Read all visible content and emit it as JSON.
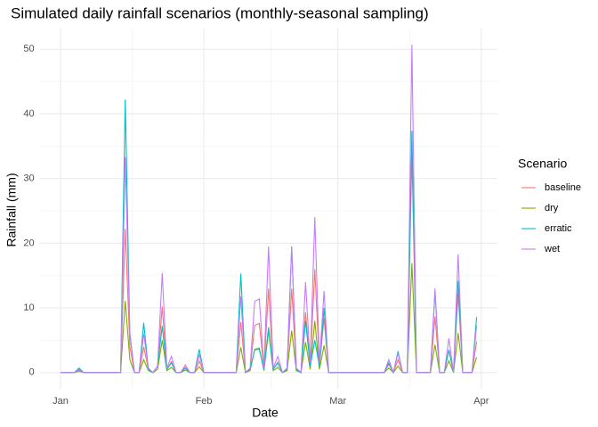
{
  "chart_data": {
    "type": "line",
    "title": "Simulated daily rainfall scenarios (monthly-seasonal sampling)",
    "x_label": "Date",
    "y_label": "Rainfall (mm)",
    "legend_title": "Scenario",
    "legend_position": "right",
    "grid": true,
    "x": [
      0,
      1,
      2,
      3,
      4,
      5,
      6,
      7,
      8,
      9,
      10,
      11,
      12,
      13,
      14,
      15,
      16,
      17,
      18,
      19,
      20,
      21,
      22,
      23,
      24,
      25,
      26,
      27,
      28,
      29,
      30,
      31,
      32,
      33,
      34,
      35,
      36,
      37,
      38,
      39,
      40,
      41,
      42,
      43,
      44,
      45,
      46,
      47,
      48,
      49,
      50,
      51,
      52,
      53,
      54,
      55,
      56,
      57,
      58,
      59,
      60,
      61,
      62,
      63,
      64,
      65,
      66,
      67,
      68,
      69,
      70,
      71,
      72,
      73,
      74,
      75,
      76,
      77,
      78,
      79,
      80,
      81,
      82,
      83,
      84,
      85,
      86,
      87,
      88,
      89,
      90
    ],
    "xlim": [
      -4.5,
      94.5
    ],
    "xticks": [
      {
        "value": 0,
        "label": "Jan"
      },
      {
        "value": 31,
        "label": "Feb"
      },
      {
        "value": 60,
        "label": "Mar"
      },
      {
        "value": 91,
        "label": "Apr"
      }
    ],
    "ylim": [
      -2.5,
      53.2
    ],
    "yticks": [
      0,
      10,
      20,
      30,
      40,
      50
    ],
    "series": [
      {
        "name": "baseline",
        "color": "#F8766D",
        "values": [
          0,
          0,
          0,
          0,
          0.5,
          0,
          0,
          0,
          0,
          0,
          0,
          0,
          0,
          0,
          22.2,
          4,
          0,
          0,
          4,
          0.5,
          0,
          1,
          10.2,
          0.5,
          1.7,
          0,
          0,
          0.8,
          0,
          0,
          1.8,
          0,
          0,
          0,
          0,
          0,
          0,
          0,
          0,
          7.8,
          0,
          0.5,
          7.3,
          7.6,
          0.5,
          13,
          0.5,
          1.6,
          0,
          0.5,
          13,
          0.5,
          0,
          9.3,
          1,
          16,
          1,
          8.4,
          0,
          0,
          0,
          0,
          0,
          0,
          0,
          0,
          0,
          0,
          0,
          0,
          0,
          1.3,
          0,
          2,
          0,
          0,
          33.8,
          0,
          0,
          0,
          0,
          8.7,
          0,
          0,
          3.5,
          0,
          12.2,
          0,
          0,
          0,
          4.8
        ]
      },
      {
        "name": "dry",
        "color": "#7CAE00",
        "values": [
          0,
          0,
          0,
          0,
          0.2,
          0,
          0,
          0,
          0,
          0,
          0,
          0,
          0,
          0,
          11.1,
          2,
          0,
          0,
          2,
          0.3,
          0,
          0.5,
          5,
          0.3,
          0.8,
          0,
          0,
          0.4,
          0,
          0,
          0.9,
          0,
          0,
          0,
          0,
          0,
          0,
          0,
          0,
          3.9,
          0,
          0.3,
          3.6,
          3.8,
          0.3,
          6.5,
          0.3,
          0.8,
          0,
          0.3,
          6.5,
          0.3,
          0,
          4.7,
          0.5,
          8,
          0.5,
          4.2,
          0,
          0,
          0,
          0,
          0,
          0,
          0,
          0,
          0,
          0,
          0,
          0,
          0,
          0.7,
          0,
          1,
          0,
          0,
          16.9,
          0,
          0,
          0,
          0,
          4.3,
          0,
          0,
          1.8,
          0,
          6.1,
          0,
          0,
          0,
          2.4
        ]
      },
      {
        "name": "erratic",
        "color": "#00BFC4",
        "values": [
          0,
          0,
          0,
          0,
          0.7,
          0,
          0,
          0,
          0,
          0,
          0,
          0,
          0,
          0,
          42.2,
          6,
          0,
          0,
          7.7,
          0.5,
          0,
          1,
          7.2,
          0.5,
          1.5,
          0,
          0,
          0.7,
          0,
          0,
          3.6,
          0,
          0,
          0,
          0,
          0,
          0,
          0,
          0,
          15.3,
          0,
          0.5,
          3.5,
          3.6,
          0.5,
          7,
          0.5,
          1.5,
          0,
          0.5,
          19.5,
          0.5,
          0,
          8,
          1,
          5,
          1,
          10,
          0,
          0,
          0,
          0,
          0,
          0,
          0,
          0,
          0,
          0,
          0,
          0,
          0,
          1.5,
          0,
          3.3,
          0,
          0,
          37.4,
          0,
          0,
          0,
          0,
          12.5,
          0,
          0,
          3.5,
          0,
          14.2,
          0,
          0,
          0,
          8.6
        ]
      },
      {
        "name": "wet",
        "color": "#C77CFF",
        "values": [
          0,
          0,
          0,
          0,
          0.4,
          0,
          0,
          0,
          0,
          0,
          0,
          0,
          0,
          0,
          33.3,
          6,
          0,
          0,
          6,
          0.7,
          0,
          1,
          15.4,
          0.7,
          2.5,
          0,
          0,
          1.2,
          0,
          0,
          2.8,
          0,
          0,
          0,
          0,
          0,
          0,
          0,
          0,
          11.8,
          0,
          0.7,
          11,
          11.4,
          0.7,
          19.5,
          0.7,
          2.5,
          0,
          0.7,
          19.5,
          0.7,
          0,
          14,
          1.5,
          24,
          1.5,
          12.6,
          0,
          0,
          0,
          0,
          0,
          0,
          0,
          0,
          0,
          0,
          0,
          0,
          0,
          2,
          0,
          3,
          0,
          0,
          50.7,
          0,
          0,
          0,
          0,
          13,
          0,
          0,
          5.3,
          0,
          18.3,
          0,
          0,
          0,
          7.3
        ]
      }
    ]
  }
}
